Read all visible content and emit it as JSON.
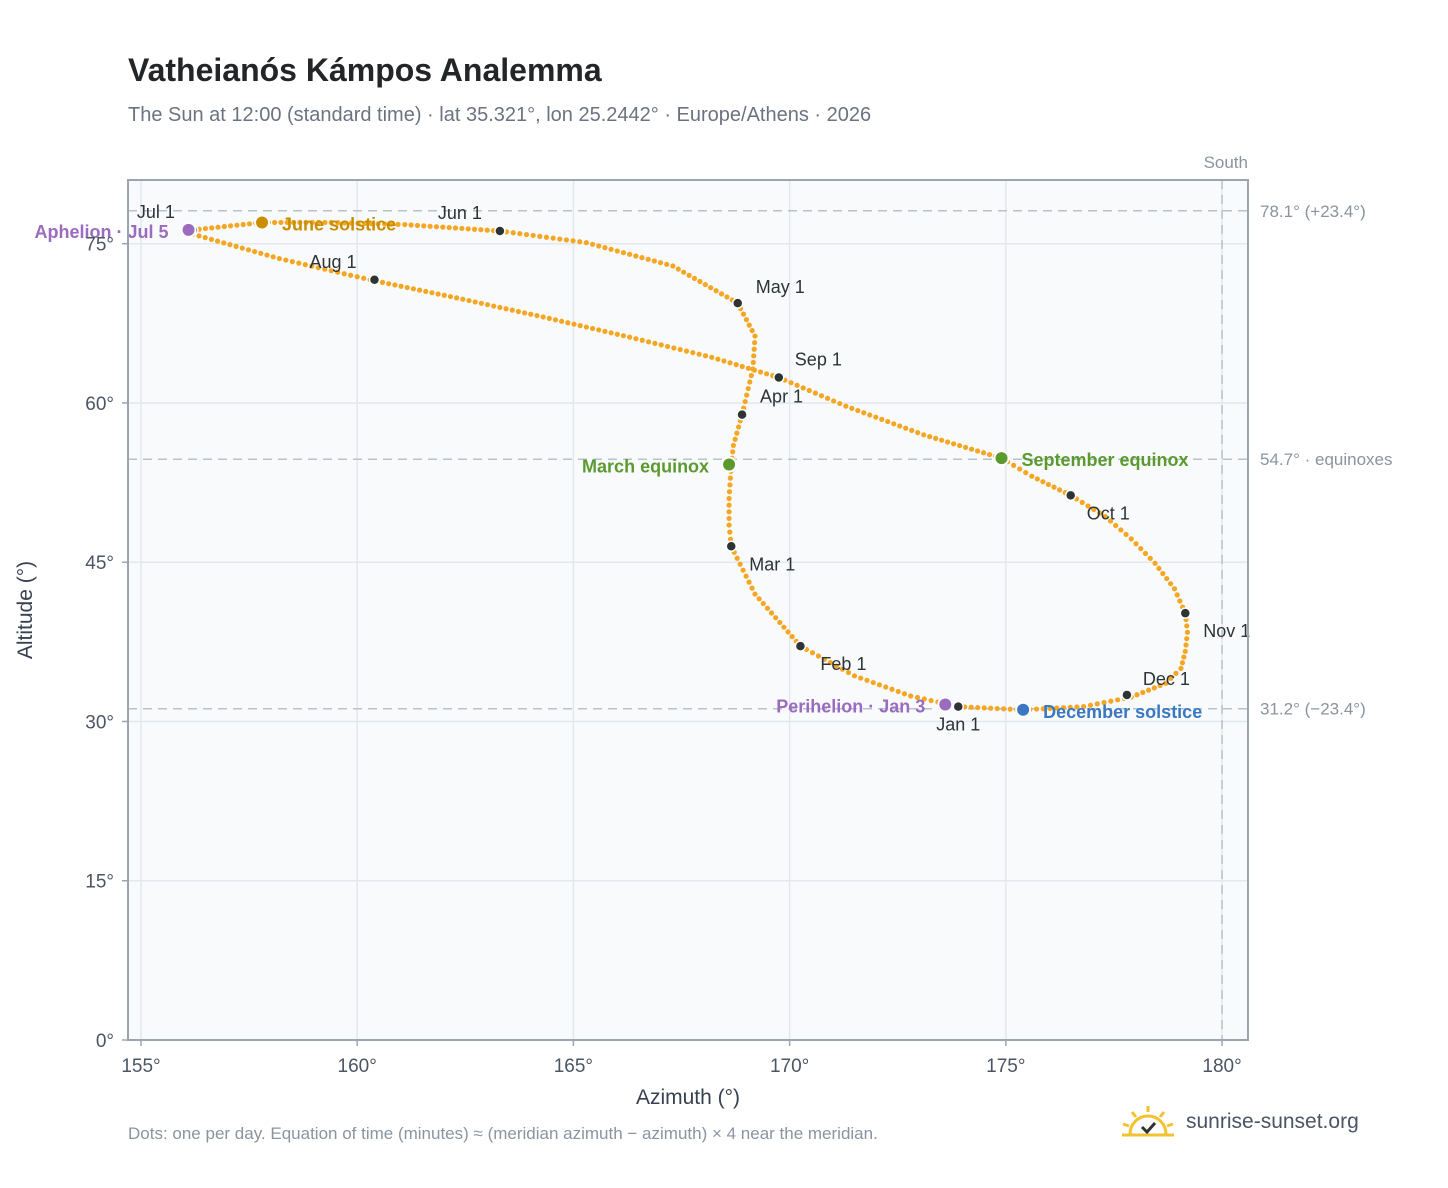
{
  "title": "Vatheianós Kámpos Analemma",
  "subtitle": "The Sun at 12:00 (standard time) · lat 35.321°, lon 25.2442° · Europe/Athens · 2026",
  "footnote": "Dots: one per day. Equation of time (minutes) ≈ (meridian azimuth − azimuth) × 4 near the meridian.",
  "brand": {
    "name": "sunrise-sunset.org",
    "logo_icon": "sun-icon"
  },
  "colors": {
    "curve": "#f5a623",
    "month_marker": "#2d3436",
    "june_solstice": "#c98e00",
    "december_solstice": "#3a78c3",
    "equinox": "#5a9a2e",
    "perihelion_aphelion": "#9a6bbf",
    "reference_line": "#b8c2cc",
    "plot_background": "#f8fafc"
  },
  "chart_data": {
    "type": "scatter",
    "xlabel": "Azimuth (°)",
    "ylabel": "Altitude (°)",
    "xlim": [
      154.7,
      180.6
    ],
    "ylim": [
      0,
      81
    ],
    "xticks": [
      155,
      160,
      165,
      170,
      175,
      180
    ],
    "yticks": [
      0,
      15,
      30,
      45,
      60,
      75
    ],
    "grid": true,
    "south_label": "South",
    "south_azimuth": 180,
    "reference_lines": [
      {
        "altitude": 78.1,
        "label": "78.1° (+23.4°)"
      },
      {
        "altitude": 54.7,
        "label": "54.7° · equinoxes"
      },
      {
        "altitude": 31.2,
        "label": "31.2° (−23.4°)"
      }
    ],
    "curve_points": [
      [
        173.9,
        31.4
      ],
      [
        175.4,
        31.1
      ],
      [
        176.8,
        31.4
      ],
      [
        177.9,
        32.3
      ],
      [
        178.7,
        33.6
      ],
      [
        179.05,
        35.0
      ],
      [
        179.15,
        36.6
      ],
      [
        179.2,
        38.4
      ],
      [
        179.15,
        40.2
      ],
      [
        178.9,
        42.5
      ],
      [
        178.45,
        44.9
      ],
      [
        177.9,
        47.2
      ],
      [
        177.3,
        49.3
      ],
      [
        176.5,
        51.3
      ],
      [
        175.6,
        53.1
      ],
      [
        174.9,
        54.8
      ],
      [
        173.1,
        57.0
      ],
      [
        171.3,
        59.7
      ],
      [
        169.75,
        62.4
      ],
      [
        168.2,
        64.3
      ],
      [
        166.3,
        66.2
      ],
      [
        164.3,
        68.1
      ],
      [
        162.3,
        69.9
      ],
      [
        160.3,
        71.6
      ],
      [
        158.2,
        73.6
      ],
      [
        156.2,
        75.9
      ],
      [
        156.2,
        76.3
      ],
      [
        157.8,
        77.0
      ],
      [
        159.4,
        77.0
      ],
      [
        161.1,
        76.8
      ],
      [
        163.3,
        76.2
      ],
      [
        165.3,
        75.1
      ],
      [
        167.3,
        72.9
      ],
      [
        168.8,
        69.4
      ],
      [
        169.2,
        66.3
      ],
      [
        169.15,
        63.2
      ],
      [
        168.9,
        58.9
      ],
      [
        168.7,
        56.0
      ],
      [
        168.65,
        54.2
      ],
      [
        168.6,
        51.0
      ],
      [
        168.6,
        48.5
      ],
      [
        168.65,
        46.5
      ],
      [
        169.2,
        42.0
      ],
      [
        170.25,
        37.1
      ],
      [
        171.5,
        34.3
      ],
      [
        172.8,
        32.4
      ],
      [
        173.9,
        31.4
      ]
    ],
    "month_markers": [
      {
        "label": "Jan 1",
        "azimuth": 173.9,
        "altitude": 31.4
      },
      {
        "label": "Feb 1",
        "azimuth": 170.25,
        "altitude": 37.1
      },
      {
        "label": "Mar 1",
        "azimuth": 168.65,
        "altitude": 46.5
      },
      {
        "label": "Apr 1",
        "azimuth": 168.9,
        "altitude": 58.9
      },
      {
        "label": "May 1",
        "azimuth": 168.8,
        "altitude": 69.4
      },
      {
        "label": "Jun 1",
        "azimuth": 163.3,
        "altitude": 76.2
      },
      {
        "label": "Jul 1",
        "azimuth": 156.2,
        "altitude": 76.3
      },
      {
        "label": "Aug 1",
        "azimuth": 160.4,
        "altitude": 71.6
      },
      {
        "label": "Sep 1",
        "azimuth": 169.75,
        "altitude": 62.4
      },
      {
        "label": "Oct 1",
        "azimuth": 176.5,
        "altitude": 51.3
      },
      {
        "label": "Nov 1",
        "azimuth": 179.15,
        "altitude": 40.2
      },
      {
        "label": "Dec 1",
        "azimuth": 177.8,
        "altitude": 32.5
      }
    ],
    "events": [
      {
        "label": "June solstice",
        "azimuth": 157.8,
        "altitude": 77.0,
        "color_key": "june_solstice"
      },
      {
        "label": "December solstice",
        "azimuth": 175.4,
        "altitude": 31.1,
        "color_key": "december_solstice"
      },
      {
        "label": "March equinox",
        "azimuth": 168.6,
        "altitude": 54.2,
        "color_key": "equinox"
      },
      {
        "label": "September equinox",
        "azimuth": 174.9,
        "altitude": 54.8,
        "color_key": "equinox"
      },
      {
        "label": "Perihelion · Jan 3",
        "azimuth": 173.6,
        "altitude": 31.6,
        "color_key": "perihelion_aphelion"
      },
      {
        "label": "Aphelion · Jul 5",
        "azimuth": 156.1,
        "altitude": 76.3,
        "color_key": "perihelion_aphelion"
      }
    ]
  }
}
